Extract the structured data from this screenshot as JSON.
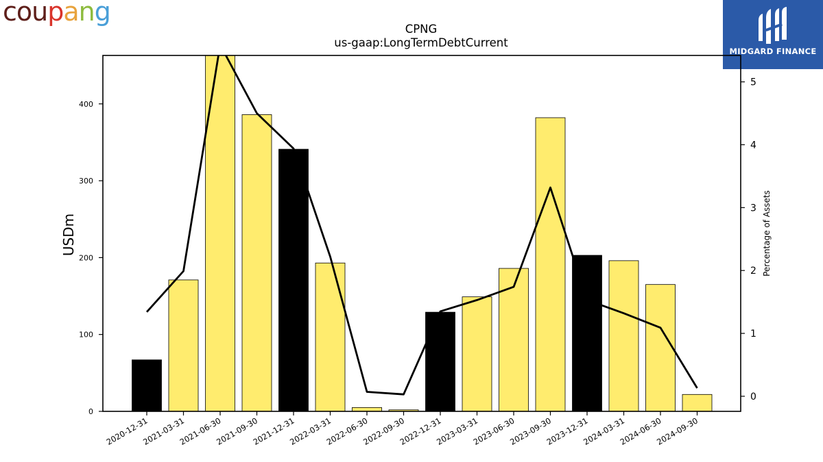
{
  "logos": {
    "left_text": "coupang",
    "left_letter_colors": [
      "#5e1f1a",
      "#5e1f1a",
      "#5e1f1a",
      "#d9342b",
      "#e8a33d",
      "#8dbb3e",
      "#4a9fd8"
    ],
    "right_text": "MIDGARD FINANCE",
    "right_bg": "#2b5aa8"
  },
  "chart_data": {
    "type": "bar",
    "title": "CPNG",
    "subtitle": "us-gaap:LongTermDebtCurrent",
    "ylabel": "USDm",
    "y2label": "Percentage of Assets",
    "categories": [
      "2020-12-31",
      "2021-03-31",
      "2021-06-30",
      "2021-09-30",
      "2021-12-31",
      "2022-03-31",
      "2022-06-30",
      "2022-09-30",
      "2022-12-31",
      "2023-03-31",
      "2023-06-30",
      "2023-09-30",
      "2023-12-31",
      "2024-03-31",
      "2024-06-30",
      "2024-09-30"
    ],
    "values": [
      67,
      171,
      463,
      386,
      341,
      193,
      5,
      2,
      129,
      149,
      186,
      382,
      203,
      196,
      165,
      22
    ],
    "bar_colors": [
      "#000000",
      "#ffec6e",
      "#ffec6e",
      "#ffec6e",
      "#000000",
      "#ffec6e",
      "#ffec6e",
      "#ffec6e",
      "#000000",
      "#ffec6e",
      "#ffec6e",
      "#ffec6e",
      "#000000",
      "#ffec6e",
      "#ffec6e",
      "#ffec6e"
    ],
    "pct_values": [
      1.34,
      1.99,
      5.59,
      4.5,
      3.94,
      2.22,
      0.07,
      0.03,
      1.35,
      1.53,
      1.74,
      3.32,
      1.53,
      1.32,
      1.09,
      0.13
    ],
    "ylim": [
      0,
      463
    ],
    "y2lim": [
      -0.24,
      5.42
    ],
    "yticks": [
      0,
      100,
      200,
      300,
      400
    ],
    "y2ticks": [
      0,
      1,
      2,
      3,
      4,
      5
    ],
    "line_color": "#000000",
    "grid": false
  }
}
